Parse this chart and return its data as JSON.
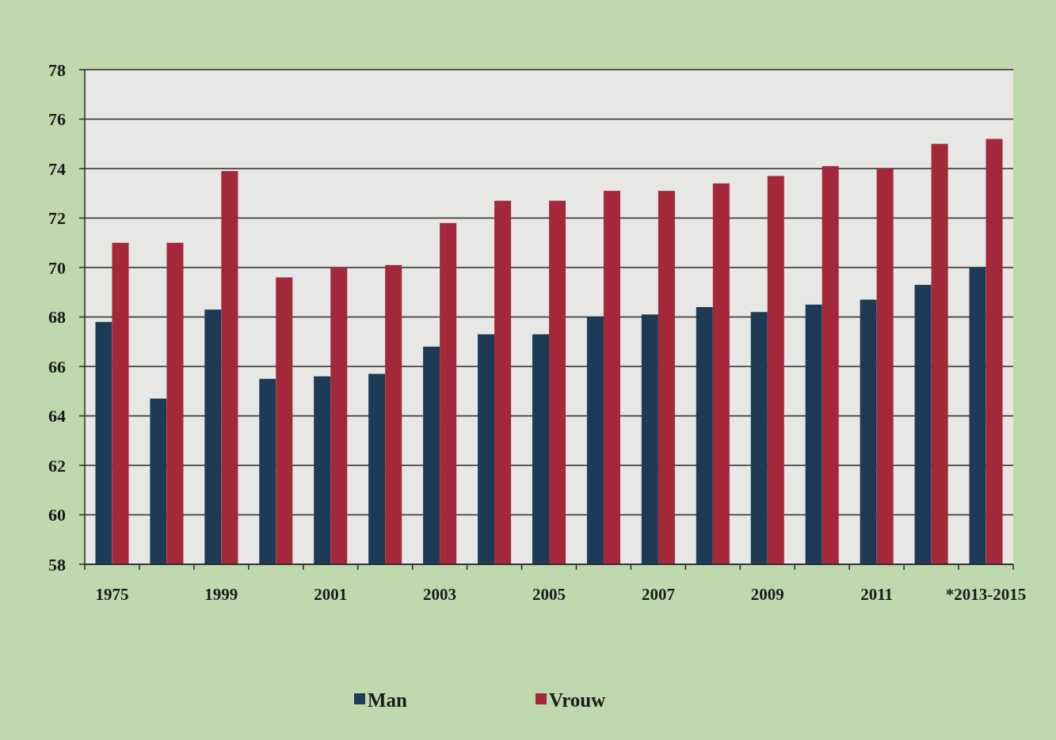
{
  "chart_data": {
    "type": "bar",
    "categories": [
      "1975",
      null,
      "1999",
      null,
      "2001",
      null,
      "2003",
      null,
      "2005",
      null,
      "2007",
      null,
      "2009",
      null,
      "2011",
      null,
      "*2013-2015"
    ],
    "series": [
      {
        "name": "Man",
        "color": "#1d3a56",
        "values": [
          67.8,
          64.7,
          68.3,
          65.5,
          65.6,
          65.7,
          66.8,
          67.3,
          67.3,
          68.0,
          68.1,
          68.4,
          68.2,
          68.5,
          68.7,
          69.3,
          70.0
        ]
      },
      {
        "name": "Vrouw",
        "color": "#a3283a",
        "values": [
          71.0,
          71.0,
          73.9,
          69.6,
          70.0,
          70.1,
          71.8,
          72.7,
          72.7,
          73.1,
          73.1,
          73.4,
          73.7,
          74.1,
          74.0,
          75.0,
          75.2
        ]
      }
    ],
    "ylim": [
      58,
      78
    ],
    "yticks": [
      58,
      60,
      62,
      64,
      66,
      68,
      70,
      72,
      74,
      76,
      78
    ],
    "grid": "y",
    "legend": "bottom"
  }
}
